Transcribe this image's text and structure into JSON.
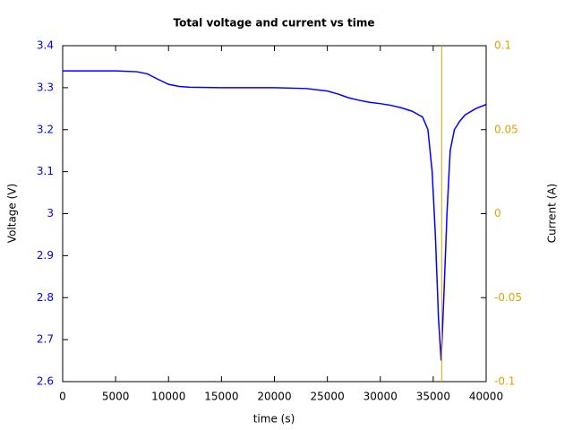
{
  "chart_data": {
    "type": "line",
    "title": "Total voltage and current vs time",
    "x_label": "time (s)",
    "y_label": "Voltage (V)",
    "y2_label": "Current (A)",
    "xlim": [
      0,
      40000
    ],
    "xticks": [
      0,
      5000,
      10000,
      15000,
      20000,
      25000,
      30000,
      35000,
      40000
    ],
    "ylim": [
      2.6,
      3.4
    ],
    "yticks": [
      2.6,
      2.7,
      2.8,
      2.9,
      3,
      3.1,
      3.2,
      3.3,
      3.4
    ],
    "y2lim": [
      -0.1,
      0.1
    ],
    "y2ticks": [
      -0.1,
      -0.05,
      0,
      0.05,
      0.1
    ],
    "y_color": "#0000ff",
    "y2_color": "#e69f00",
    "series": [
      {
        "color": "#0000ff",
        "x": [
          0,
          5000,
          7000,
          8000,
          9000,
          10000,
          11000,
          12000,
          15000,
          20000,
          23000,
          25000,
          26000,
          27000,
          28000,
          29000,
          30000,
          31000,
          32000,
          33000,
          34000,
          34500,
          34900,
          35200,
          35500,
          35750,
          36000,
          36300,
          36600,
          37000,
          37500,
          38000,
          39000,
          40000
        ],
        "values": [
          3.34,
          3.34,
          3.338,
          3.333,
          3.32,
          3.308,
          3.303,
          3.301,
          3.3,
          3.3,
          3.298,
          3.292,
          3.285,
          3.276,
          3.27,
          3.265,
          3.262,
          3.258,
          3.252,
          3.244,
          3.23,
          3.2,
          3.1,
          2.95,
          2.75,
          2.65,
          2.8,
          3.0,
          3.15,
          3.2,
          3.22,
          3.235,
          3.25,
          3.26
        ]
      },
      {
        "color": "#e69f00",
        "axis": "y2",
        "x": [
          35800,
          35800
        ],
        "values": [
          -0.1,
          0.1
        ]
      }
    ]
  }
}
